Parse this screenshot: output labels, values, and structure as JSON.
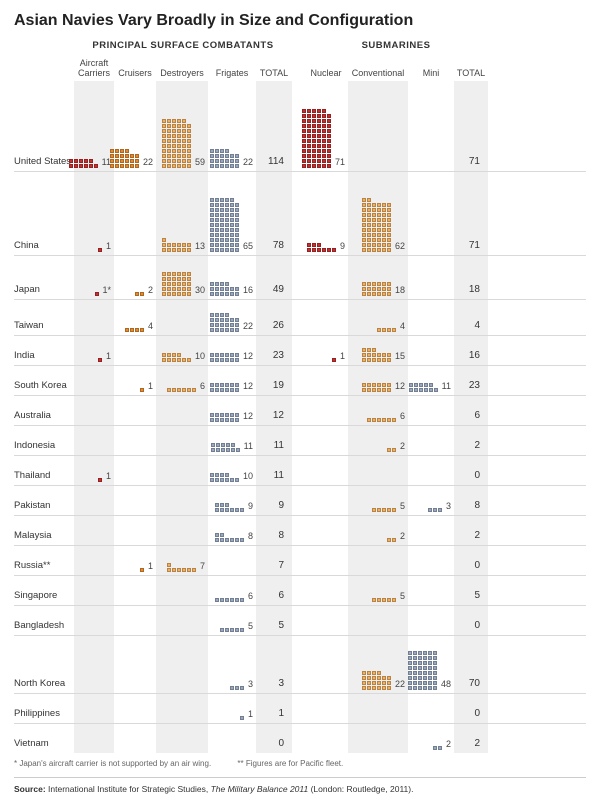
{
  "title": "Asian Navies Vary Broadly in Size and Configuration",
  "section1": "PRINCIPAL SURFACE COMBATANTS",
  "section2": "SUBMARINES",
  "columns": {
    "carriers": "Aircraft\nCarriers",
    "cruisers": "Cruisers",
    "destroyers": "Destroyers",
    "frigates": "Frigates",
    "total1": "TOTAL",
    "nuclear": "Nuclear",
    "conventional": "Conventional",
    "mini": "Mini",
    "total2": "TOTAL"
  },
  "col_widths": {
    "carriers": 40,
    "cruisers": 42,
    "destroyers": 52,
    "frigates": 48,
    "total1": 36,
    "gap": 12,
    "nuclear": 44,
    "conventional": 60,
    "mini": 46,
    "total2": 34
  },
  "colors": {
    "carriers": "#c52f2f",
    "cruisers": "#e68a2e",
    "destroyers": "#f2b05e",
    "frigates": "#9aa9c2",
    "nuclear": "#c52f2f",
    "conventional": "#f2b05e",
    "mini": "#9aa9c2",
    "shade": "#efefef",
    "rule": "#d9d9d9"
  },
  "block_units_per_row": 6,
  "countries": [
    {
      "name": "United States",
      "carriers": 11,
      "cruisers": 22,
      "destroyers": 59,
      "frigates": 22,
      "total1": 114,
      "nuclear": 71,
      "conventional": null,
      "mini": null,
      "total2": 71,
      "tall": 90
    },
    {
      "name": "China",
      "carriers": 1,
      "cruisers": null,
      "destroyers": 13,
      "frigates": 65,
      "total1": 78,
      "nuclear": 9,
      "conventional": 62,
      "mini": null,
      "total2": 71,
      "tall": 84
    },
    {
      "name": "Japan",
      "carriers": 1,
      "carriers_note": "*",
      "cruisers": 2,
      "destroyers": 30,
      "frigates": 16,
      "total1": 49,
      "nuclear": null,
      "conventional": 18,
      "mini": null,
      "total2": 18,
      "tall": 44
    },
    {
      "name": "Taiwan",
      "carriers": null,
      "cruisers": 4,
      "destroyers": null,
      "frigates": 22,
      "total1": 26,
      "nuclear": null,
      "conventional": 4,
      "mini": null,
      "total2": 4,
      "tall": 36
    },
    {
      "name": "India",
      "carriers": 1,
      "cruisers": null,
      "destroyers": 10,
      "frigates": 12,
      "total1": 23,
      "nuclear": 1,
      "conventional": 15,
      "mini": null,
      "total2": 16,
      "tall": 30
    },
    {
      "name": "South Korea",
      "carriers": null,
      "cruisers": 1,
      "destroyers": 6,
      "frigates": 12,
      "total1": 19,
      "nuclear": null,
      "conventional": 12,
      "mini": 11,
      "total2": 23,
      "tall": 30
    },
    {
      "name": "Australia",
      "carriers": null,
      "cruisers": null,
      "destroyers": null,
      "frigates": 12,
      "total1": 12,
      "nuclear": null,
      "conventional": 6,
      "mini": null,
      "total2": 6,
      "tall": 26
    },
    {
      "name": "Indonesia",
      "carriers": null,
      "cruisers": null,
      "destroyers": null,
      "frigates": 11,
      "total1": 11,
      "nuclear": null,
      "conventional": 2,
      "mini": null,
      "total2": 2,
      "tall": 26
    },
    {
      "name": "Thailand",
      "carriers": 1,
      "cruisers": null,
      "destroyers": null,
      "frigates": 10,
      "total1": 11,
      "nuclear": null,
      "conventional": null,
      "mini": null,
      "total2": 0,
      "tall": 26
    },
    {
      "name": "Pakistan",
      "carriers": null,
      "cruisers": null,
      "destroyers": null,
      "frigates": 9,
      "total1": 9,
      "nuclear": null,
      "conventional": 5,
      "mini": 3,
      "total2": 8,
      "tall": 26
    },
    {
      "name": "Malaysia",
      "carriers": null,
      "cruisers": null,
      "destroyers": null,
      "frigates": 8,
      "total1": 8,
      "nuclear": null,
      "conventional": 2,
      "mini": null,
      "total2": 2,
      "tall": 26
    },
    {
      "name": "Russia**",
      "carriers": null,
      "cruisers": 1,
      "destroyers": 7,
      "frigates": null,
      "total1": 7,
      "nuclear": null,
      "conventional": null,
      "mini": null,
      "total2": 0,
      "tall": 26
    },
    {
      "name": "Singapore",
      "carriers": null,
      "cruisers": null,
      "destroyers": null,
      "frigates": 6,
      "total1": 6,
      "nuclear": null,
      "conventional": 5,
      "mini": null,
      "total2": 5,
      "tall": 24
    },
    {
      "name": "Bangladesh",
      "carriers": null,
      "cruisers": null,
      "destroyers": null,
      "frigates": 5,
      "total1": 5,
      "nuclear": null,
      "conventional": null,
      "mini": null,
      "total2": 0,
      "tall": 24
    },
    {
      "name": "North Korea",
      "carriers": null,
      "cruisers": null,
      "destroyers": null,
      "frigates": 3,
      "total1": 3,
      "nuclear": null,
      "conventional": 22,
      "mini": 48,
      "total2": 70,
      "tall": 58
    },
    {
      "name": "Philippines",
      "carriers": null,
      "cruisers": null,
      "destroyers": null,
      "frigates": 1,
      "total1": 1,
      "nuclear": null,
      "conventional": null,
      "mini": null,
      "total2": 0,
      "tall": 22
    },
    {
      "name": "Vietnam",
      "carriers": null,
      "cruisers": null,
      "destroyers": null,
      "frigates": null,
      "total1": 0,
      "nuclear": null,
      "conventional": null,
      "mini": 2,
      "total2": 2,
      "tall": 22
    }
  ],
  "footnote1": "* Japan's aircraft carrier is not supported by an air wing.",
  "footnote2": "** Figures are for Pacific fleet.",
  "source_label": "Source:",
  "source_text": "International Institute for Strategic Studies, ",
  "source_italic": "The Military Balance 2011",
  "source_tail": " (London: Routledge, 2011)."
}
